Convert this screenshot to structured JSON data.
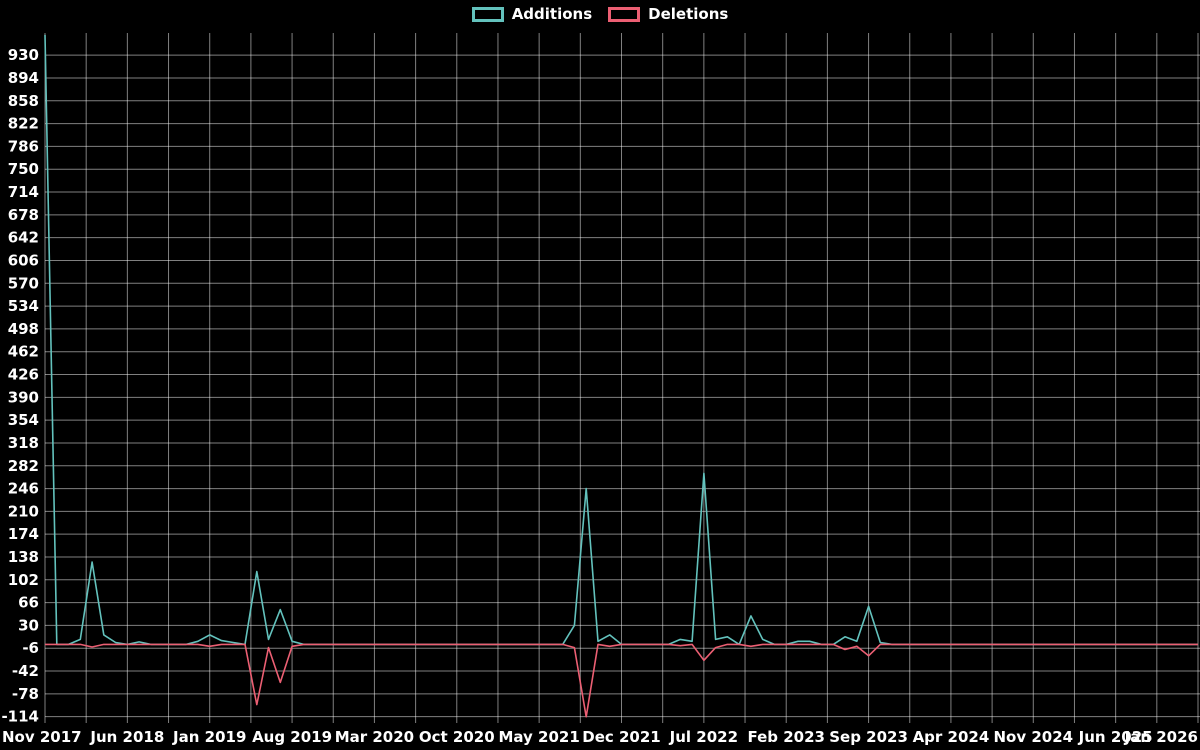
{
  "legend": {
    "items": [
      {
        "label": "Additions",
        "color": "#63c2bd"
      },
      {
        "label": "Deletions",
        "color": "#ec5f73"
      }
    ]
  },
  "colors": {
    "background": "#000000",
    "grid": "rgba(255,255,255,0.5)",
    "text": "#ffffff",
    "additions": "#63c2bd",
    "deletions": "#ec5f73"
  },
  "chart_data": {
    "type": "line",
    "title": "",
    "xlabel": "",
    "ylabel": "",
    "x_unit": "month",
    "x_count": 99,
    "x_range": [
      "Nov 2017",
      "Jan 2026"
    ],
    "x_ticks": [
      {
        "month": 0,
        "label": "Nov 2017"
      },
      {
        "month": 7,
        "label": "Jun 2018"
      },
      {
        "month": 14,
        "label": "Jan 2019"
      },
      {
        "month": 21,
        "label": "Aug 2019"
      },
      {
        "month": 28,
        "label": "Mar 2020"
      },
      {
        "month": 35,
        "label": "Oct 2020"
      },
      {
        "month": 42,
        "label": "May 2021"
      },
      {
        "month": 49,
        "label": "Dec 2021"
      },
      {
        "month": 56,
        "label": "Jul 2022"
      },
      {
        "month": 63,
        "label": "Feb 2023"
      },
      {
        "month": 70,
        "label": "Sep 2023"
      },
      {
        "month": 77,
        "label": "Apr 2024"
      },
      {
        "month": 84,
        "label": "Nov 2024"
      },
      {
        "month": 91,
        "label": "Jun 2025"
      },
      {
        "month": 98,
        "label": "Jan 2026"
      }
    ],
    "y_ticks": [
      -114,
      -78,
      -42,
      -6,
      30,
      66,
      102,
      138,
      174,
      210,
      246,
      282,
      318,
      354,
      390,
      426,
      462,
      498,
      534,
      570,
      606,
      642,
      678,
      714,
      750,
      786,
      822,
      858,
      894,
      930
    ],
    "y_domain": [
      -124,
      965
    ],
    "grid": true,
    "legend_position": "top-center",
    "vertical_grid_step_months": 3.5,
    "series": [
      {
        "name": "Additions",
        "color": "#63c2bd",
        "values": [
          962,
          0,
          0,
          8,
          130,
          15,
          3,
          0,
          4,
          0,
          0,
          0,
          0,
          5,
          15,
          6,
          3,
          0,
          115,
          8,
          55,
          5,
          0,
          0,
          0,
          0,
          0,
          0,
          0,
          0,
          0,
          0,
          0,
          0,
          0,
          0,
          0,
          0,
          0,
          0,
          0,
          0,
          0,
          0,
          0,
          30,
          246,
          5,
          15,
          0,
          0,
          0,
          0,
          0,
          8,
          5,
          270,
          8,
          12,
          0,
          45,
          8,
          0,
          0,
          5,
          5,
          0,
          0,
          12,
          5,
          60,
          3,
          0,
          0,
          0,
          0,
          0,
          0,
          0,
          0,
          0,
          0,
          0,
          0,
          0,
          0,
          0,
          0,
          0,
          0,
          0,
          0,
          0,
          0,
          0,
          0,
          0,
          0,
          0
        ]
      },
      {
        "name": "Deletions",
        "color": "#ec5f73",
        "values": [
          0,
          0,
          0,
          0,
          -4,
          0,
          0,
          0,
          0,
          0,
          0,
          0,
          0,
          0,
          -3,
          0,
          0,
          0,
          -95,
          -5,
          -60,
          -3,
          0,
          0,
          0,
          0,
          0,
          0,
          0,
          0,
          0,
          0,
          0,
          0,
          0,
          0,
          0,
          0,
          0,
          0,
          0,
          0,
          0,
          0,
          0,
          -5,
          -114,
          0,
          -3,
          0,
          0,
          0,
          0,
          0,
          -2,
          0,
          -25,
          -5,
          0,
          0,
          -3,
          0,
          0,
          0,
          0,
          0,
          0,
          0,
          -8,
          -3,
          -18,
          0,
          0,
          0,
          0,
          0,
          0,
          0,
          0,
          0,
          0,
          0,
          0,
          0,
          0,
          0,
          0,
          0,
          0,
          0,
          0,
          0,
          0,
          0,
          0,
          0,
          0,
          0,
          0
        ]
      }
    ]
  }
}
